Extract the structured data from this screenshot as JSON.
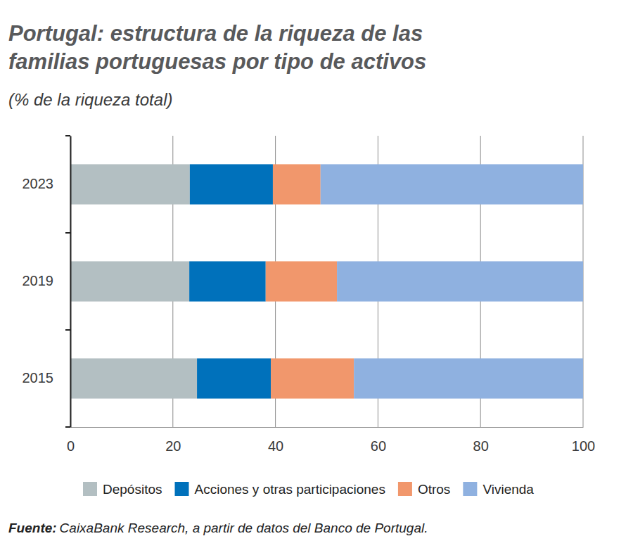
{
  "chart_data": {
    "type": "bar",
    "orientation": "horizontal",
    "stacked": true,
    "title": "Portugal: estructura de la riqueza de las familias portuguesas por tipo de activos",
    "subtitle": "(% de la riqueza total)",
    "categories": [
      "2023",
      "2019",
      "2015"
    ],
    "series": [
      {
        "name": "Depósitos",
        "color": "#b3bfc2",
        "values": [
          23.3,
          23.2,
          24.7
        ]
      },
      {
        "name": "Acciones y otras participaciones",
        "color": "#0071bb",
        "values": [
          16.2,
          14.9,
          14.4
        ]
      },
      {
        "name": "Otros",
        "color": "#f1976c",
        "values": [
          9.3,
          13.9,
          16.2
        ]
      },
      {
        "name": "Vivienda",
        "color": "#8fb1e0",
        "values": [
          51.2,
          48.0,
          44.7
        ]
      }
    ],
    "xlim": [
      0,
      100
    ],
    "xticks": [
      0,
      20,
      40,
      60,
      80,
      100
    ],
    "grid": true,
    "legend": "bottom",
    "source_label": "Fuente:",
    "source": "CaixaBank Research, a partir de datos del Banco de Portugal."
  }
}
